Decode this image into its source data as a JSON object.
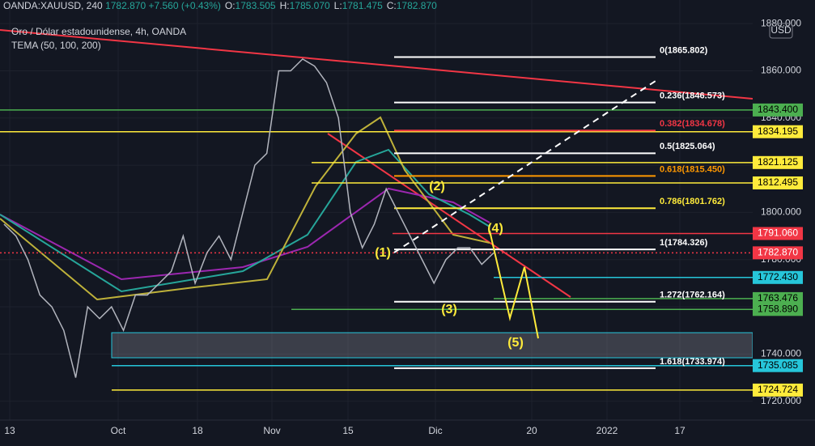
{
  "header": {
    "symbol": "OANDA:XAUUSD, 240",
    "price": "1782.870",
    "change": "+7.560 (+0.43%)",
    "ohlc": [
      {
        "key": "O:",
        "val": "1783.505"
      },
      {
        "key": "H:",
        "val": "1785.070"
      },
      {
        "key": "L:",
        "val": "1781.475"
      },
      {
        "key": "C:",
        "val": "1782.870"
      }
    ]
  },
  "legend": {
    "title": "Oro / Dólar estadounidense, 4h, OANDA",
    "indicator": "TEMA (50, 100, 200)"
  },
  "currency": "USD",
  "chart_data": {
    "type": "line",
    "color": "#b2b5be",
    "values": [
      1795,
      1790,
      1780,
      1765,
      1760,
      1750,
      1730,
      1760,
      1755,
      1760,
      1750,
      1765,
      1765,
      1770,
      1775,
      1790,
      1770,
      1783,
      1790,
      1780,
      1800,
      1820,
      1825,
      1860,
      1860,
      1865,
      1862,
      1855,
      1840,
      1800,
      1785,
      1795,
      1810,
      1800,
      1790,
      1780,
      1770,
      1780,
      1785,
      1785,
      1778,
      1782.87
    ],
    "ylim": [
      1712,
      1890
    ],
    "yticks": [
      {
        "value": 1880,
        "label": "1880.000"
      },
      {
        "value": 1860,
        "label": "1860.000"
      },
      {
        "value": 1840,
        "label": "1840.000"
      },
      {
        "value": 1820,
        "label": "1820.000"
      },
      {
        "value": 1800,
        "label": "1800.000"
      },
      {
        "value": 1780,
        "label": "1780.000"
      },
      {
        "value": 1760,
        "label": "1760.000"
      },
      {
        "value": 1740,
        "label": "1740.000"
      },
      {
        "value": 1720,
        "label": "1720.000"
      }
    ],
    "xticks": [
      "13",
      "Oct",
      "18",
      "Nov",
      "15",
      "Dic",
      "20",
      "2022",
      "17"
    ],
    "levels": [
      {
        "value": 1843.4,
        "label": "1843.400",
        "color": "#4caf50"
      },
      {
        "value": 1834.195,
        "label": "1834.195",
        "color": "#ffeb3b"
      },
      {
        "value": 1821.125,
        "label": "1821.125",
        "color": "#ffeb3b"
      },
      {
        "value": 1812.495,
        "label": "1812.495",
        "color": "#ffeb3b"
      },
      {
        "value": 1791.06,
        "label": "1791.060",
        "color": "#f23645"
      },
      {
        "value": 1782.87,
        "label": "1782.870",
        "color": "#f23645"
      },
      {
        "value": 1772.43,
        "label": "1772.430",
        "color": "#26c6da"
      },
      {
        "value": 1763.476,
        "label": "1763.476",
        "color": "#4caf50"
      },
      {
        "value": 1758.89,
        "label": "1758.890",
        "color": "#4caf50"
      },
      {
        "value": 1735.085,
        "label": "1735.085",
        "color": "#26c6da"
      },
      {
        "value": 1724.724,
        "label": "1724.724",
        "color": "#ffeb3b"
      }
    ],
    "fib": [
      {
        "value": 1865.802,
        "label": "0(1865.802)",
        "color": "#ffffff"
      },
      {
        "value": 1846.573,
        "label": "0.236(1846.573)",
        "color": "#ffffff"
      },
      {
        "value": 1834.678,
        "label": "0.382(1834.678)",
        "color": "#f23645"
      },
      {
        "value": 1825.064,
        "label": "0.5(1825.064)",
        "color": "#ffffff"
      },
      {
        "value": 1815.45,
        "label": "0.618(1815.450)",
        "color": "#ff9800"
      },
      {
        "value": 1801.762,
        "label": "0.786(1801.762)",
        "color": "#ffeb3b"
      },
      {
        "value": 1784.326,
        "label": "1(1784.326)",
        "color": "#ffffff"
      },
      {
        "value": 1762.164,
        "label": "1.272(1762.164)",
        "color": "#ffffff"
      },
      {
        "value": 1733.974,
        "label": "1.618(1733.974)",
        "color": "#ffffff"
      }
    ],
    "waves": [
      "(1)",
      "(2)",
      "(3)",
      "(4)",
      "(5)"
    ]
  }
}
